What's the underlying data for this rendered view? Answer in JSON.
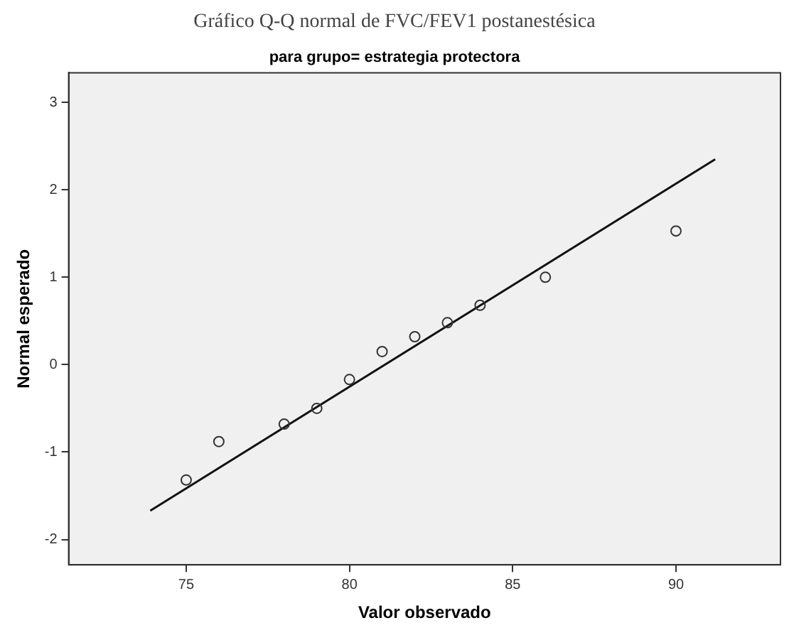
{
  "chart_data": {
    "type": "scatter",
    "title": "Gráfico Q-Q normal de FVC/FEV1 postanestésica",
    "subtitle": "para grupo= estrategia protectora",
    "xlabel": "Valor observado",
    "ylabel": "Normal esperado",
    "series": [
      {
        "color": "#333333",
        "marker": "circle",
        "x": [
          75,
          76,
          78,
          79,
          80,
          81,
          82,
          83,
          84,
          86,
          90
        ],
        "values": [
          -1.32,
          -0.88,
          -0.68,
          -0.5,
          -0.17,
          0.15,
          0.32,
          0.48,
          0.68,
          1.0,
          1.53
        ]
      },
      {
        "type": "line",
        "color": "#111111",
        "marker": "none",
        "line_style": "solid",
        "x": [
          73.9,
          91.2
        ],
        "values": [
          -1.67,
          2.35
        ]
      }
    ],
    "xlim": [
      71.4,
      93.2
    ],
    "xticks": [
      75,
      80,
      85,
      90
    ],
    "ylim": [
      -2.29,
      3.34
    ],
    "yticks": [
      -2,
      -1,
      0,
      1,
      2,
      3
    ],
    "grid": false,
    "legend": false
  }
}
